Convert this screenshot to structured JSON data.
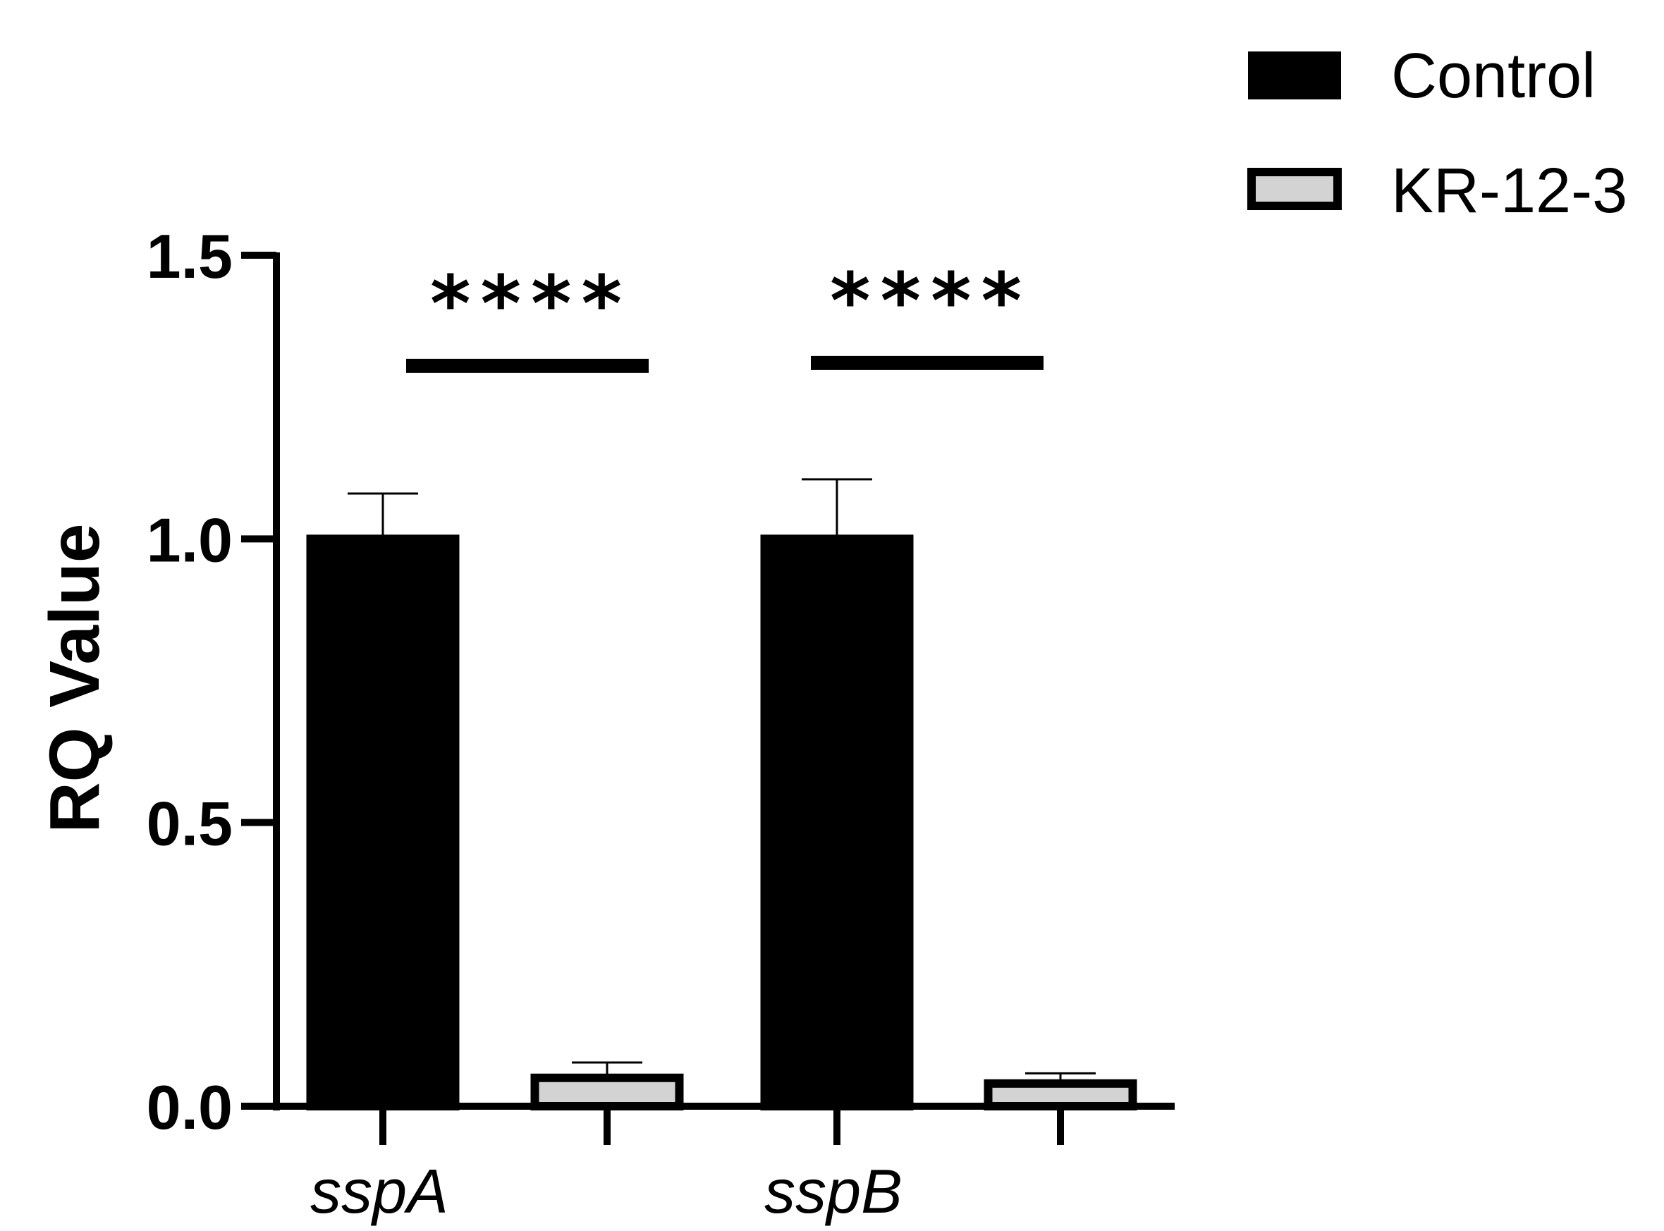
{
  "chart_data": {
    "type": "bar",
    "title": "",
    "xlabel": "",
    "ylabel": "RQ Value",
    "ylim": [
      0,
      1.5
    ],
    "yticks": [
      "0.0",
      "0.5",
      "1.0",
      "1.5"
    ],
    "categories": [
      "sspA",
      "sspB"
    ],
    "series": [
      {
        "name": "Control",
        "color": "#000000",
        "values": [
          1.0,
          1.0
        ],
        "errors": [
          0.08,
          0.105
        ]
      },
      {
        "name": "KR-12-3",
        "color": "#d3d3d3",
        "values": [
          0.05,
          0.04
        ],
        "errors": [
          0.027,
          0.018
        ]
      }
    ],
    "significance": [
      {
        "category": "sspA",
        "label": "****",
        "level": 1.305
      },
      {
        "category": "sspB",
        "label": "****",
        "level": 1.31
      }
    ],
    "legend_position": "top-right",
    "grid": false
  }
}
